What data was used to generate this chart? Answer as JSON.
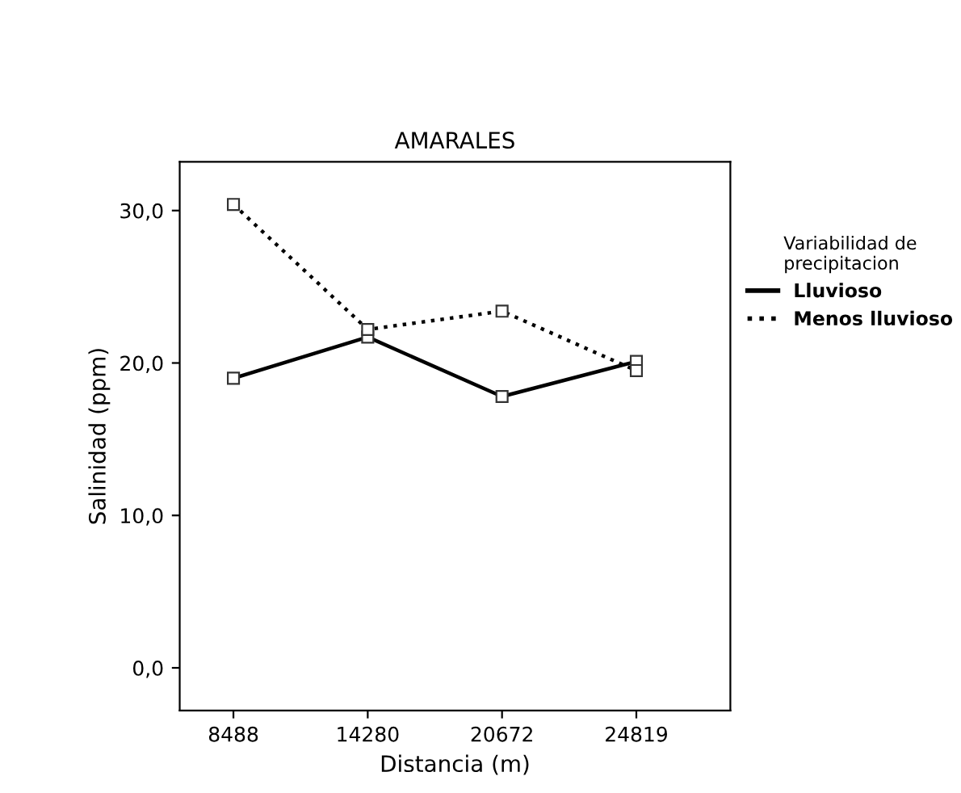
{
  "chart_data": {
    "type": "line",
    "title": "AMARALES",
    "xlabel": "Distancia (m)",
    "ylabel": "Salinidad (ppm)",
    "legend_title": "Variabilidad de\nprecipitacion",
    "categories": [
      "8488",
      "14280",
      "20672",
      "24819"
    ],
    "series": [
      {
        "name": "Lluvioso",
        "color": "#000000",
        "line_style": "solid",
        "values": [
          19.0,
          21.7,
          17.8,
          20.1
        ]
      },
      {
        "name": "Menos lluvioso",
        "color": "#000000",
        "line_style": "dotted",
        "values": [
          30.4,
          22.2,
          23.4,
          19.5
        ]
      }
    ],
    "ylim": [
      -2.8,
      33.2
    ],
    "yticks": [
      {
        "value": 0,
        "label": "0,0"
      },
      {
        "value": 10,
        "label": "10,0"
      },
      {
        "value": 20,
        "label": "20,0"
      },
      {
        "value": 30,
        "label": "30,0"
      }
    ],
    "marker": "square",
    "grid": false,
    "legend": "right"
  }
}
